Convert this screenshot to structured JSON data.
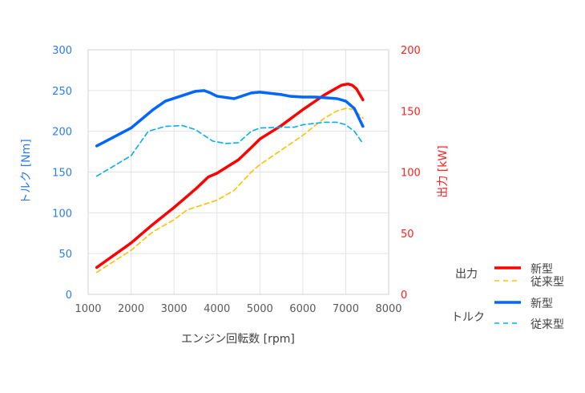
{
  "chart_data": {
    "type": "line",
    "xlabel": "エンジン回転数 [rpm]",
    "ylabel_left": "トルク [Nm]",
    "ylabel_right": "出力 [kW]",
    "xlim": [
      1000,
      8000
    ],
    "ylim_left": [
      0,
      300
    ],
    "ylim_right": [
      0,
      200
    ],
    "x_ticks": [
      1000,
      2000,
      3000,
      4000,
      5000,
      6000,
      7000,
      8000
    ],
    "y_ticks_left": [
      0,
      50,
      100,
      150,
      200,
      250,
      300
    ],
    "y_ticks_right": [
      0,
      50,
      100,
      150,
      200
    ],
    "grid": true,
    "legend_placement": "right",
    "legend_groups": [
      "出力",
      "トルク"
    ],
    "series": [
      {
        "name": "新型",
        "group": "出力",
        "axis": "right",
        "color": "#ff0000",
        "dash": false,
        "x": [
          1200,
          2000,
          2500,
          3000,
          3500,
          3800,
          4000,
          4500,
          4800,
          5000,
          5500,
          6000,
          6500,
          6900,
          7050,
          7150,
          7250,
          7400
        ],
        "y": [
          22,
          42,
          57,
          71,
          86,
          96,
          99,
          110,
          120,
          127,
          138,
          151,
          163,
          171,
          172,
          171,
          168,
          159
        ]
      },
      {
        "name": "従来型",
        "group": "出力",
        "axis": "right",
        "color": "#ffc000",
        "dash": true,
        "x": [
          1200,
          2000,
          2500,
          3000,
          3300,
          4000,
          4400,
          4800,
          5000,
          5500,
          6000,
          6500,
          6800,
          7000,
          7200,
          7400
        ],
        "y": [
          18,
          36,
          51,
          61,
          69,
          77,
          85,
          100,
          106,
          118,
          130,
          144,
          150,
          152,
          151,
          144
        ]
      },
      {
        "name": "新型",
        "group": "トルク",
        "axis": "left",
        "color": "#0066ff",
        "dash": false,
        "x": [
          1200,
          2000,
          2500,
          2800,
          3500,
          3700,
          3850,
          4000,
          4400,
          4800,
          5000,
          5500,
          5700,
          6000,
          6300,
          6800,
          7000,
          7200,
          7400
        ],
        "y": [
          182,
          204,
          226,
          237,
          249,
          250,
          247,
          243,
          240,
          247,
          248,
          245,
          243,
          242,
          242,
          240,
          237,
          228,
          206
        ]
      },
      {
        "name": "従来型",
        "group": "トルク",
        "axis": "left",
        "color": "#00b0f0",
        "dash": true,
        "x": [
          1200,
          2000,
          2400,
          2800,
          3200,
          3500,
          3900,
          4200,
          4500,
          4800,
          5000,
          5500,
          5800,
          6000,
          6500,
          6800,
          7000,
          7200,
          7400
        ],
        "y": [
          145,
          170,
          200,
          206,
          207,
          202,
          188,
          185,
          186,
          200,
          204,
          205,
          205,
          208,
          211,
          211,
          208,
          200,
          185
        ]
      }
    ],
    "colors": {
      "left_axis": "#2b7bf0",
      "right_axis": "#ff2020"
    }
  }
}
